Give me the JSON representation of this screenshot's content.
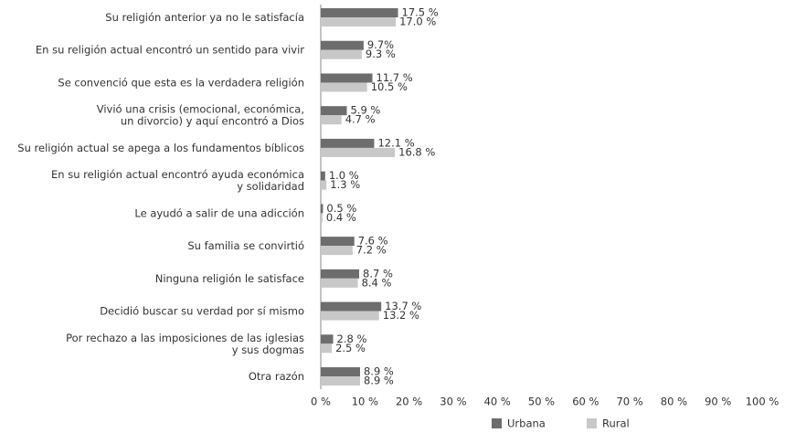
{
  "chart_data": {
    "type": "bar",
    "orientation": "horizontal",
    "categories": [
      "Su religión anterior ya no le satisfacía",
      "En su religión actual encontró un sentido para vivir",
      "Se convenció que esta es la verdadera religión",
      "Vivió una crisis (emocional, económica,\nun divorcio) y aquí encontró a Dios",
      "Su religión actual se apega a los fundamentos bíblicos",
      "En su religión actual encontró ayuda económica\ny solidaridad",
      "Le ayudó a salir de una adicción",
      "Su familia se convirtió",
      "Ninguna religión le satisface",
      "Decidió buscar su verdad por sí mismo",
      "Por rechazo a las imposiciones de las iglesias\ny sus dogmas",
      "Otra razón"
    ],
    "series": [
      {
        "name": "Urbana",
        "color": "#6d6d6d",
        "values": [
          17.5,
          9.7,
          11.7,
          5.9,
          12.1,
          1.0,
          0.5,
          7.6,
          8.7,
          13.7,
          2.8,
          8.9
        ],
        "value_labels": [
          "17.5 %",
          "9.7%",
          "11.7 %",
          "5.9 %",
          "12.1 %",
          "1.0 %",
          "0.5 %",
          "7.6 %",
          "8.7 %",
          "13.7 %",
          "2.8 %",
          "8.9 %"
        ]
      },
      {
        "name": "Rural",
        "color": "#c8c8c8",
        "values": [
          17.0,
          9.3,
          10.5,
          4.7,
          16.8,
          1.3,
          0.4,
          7.2,
          8.4,
          13.2,
          2.5,
          8.9
        ],
        "value_labels": [
          "17.0 %",
          "9.3 %",
          "10.5 %",
          "4.7 %",
          "16.8 %",
          "1.3 %",
          "0.4 %",
          "7.2 %",
          "8.4 %",
          "13.2 %",
          "2.5 %",
          "8.9 %"
        ]
      }
    ],
    "xlim": [
      0,
      100
    ],
    "xticks": [
      {
        "value": 0,
        "label": "0 %"
      },
      {
        "value": 10,
        "label": "10 %"
      },
      {
        "value": 20,
        "label": "20 %"
      },
      {
        "value": 30,
        "label": "30 %"
      },
      {
        "value": 40,
        "label": "40 %"
      },
      {
        "value": 50,
        "label": "50 %"
      },
      {
        "value": 60,
        "label": "60 %"
      },
      {
        "value": 70,
        "label": "70 %"
      },
      {
        "value": 80,
        "label": "80 %"
      },
      {
        "value": 90,
        "label": "90 %"
      },
      {
        "value": 100,
        "label": "100 %"
      }
    ],
    "legend": "bottom"
  }
}
